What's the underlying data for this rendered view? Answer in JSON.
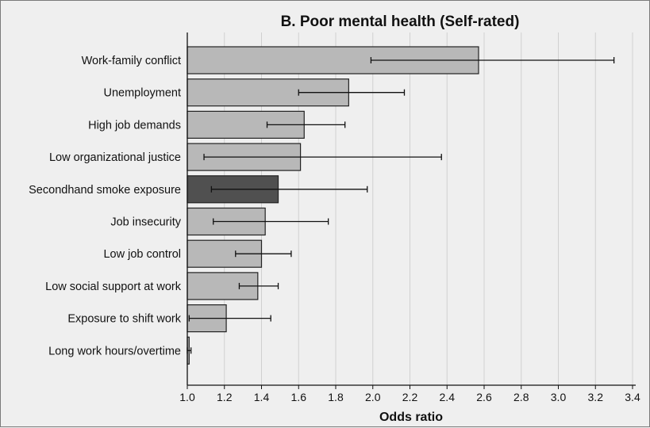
{
  "chart_data": {
    "type": "bar",
    "orientation": "horizontal",
    "title": "B. Poor mental health (Self-rated)",
    "xlabel": "Odds ratio",
    "ylabel": "",
    "xlim": [
      1.0,
      3.45
    ],
    "grid": true,
    "colors": {
      "bar": "#b8b8b8",
      "highlight": "#505050",
      "stroke": "#222222",
      "grid": "#d0d0d0"
    },
    "categories": [
      "Work-family conflict",
      "Unemployment",
      "High job demands",
      "Low organizational justice",
      "Secondhand smoke exposure",
      "Job insecurity",
      "Low job control",
      "Low social support at work",
      "Exposure to shift work",
      "Long work hours/overtime"
    ],
    "values": [
      2.57,
      1.87,
      1.63,
      1.61,
      1.49,
      1.42,
      1.4,
      1.38,
      1.21,
      1.01
    ],
    "ci_lower": [
      1.99,
      1.6,
      1.43,
      1.09,
      1.13,
      1.14,
      1.26,
      1.28,
      1.01,
      1.0
    ],
    "ci_upper": [
      3.3,
      2.17,
      1.85,
      2.37,
      1.97,
      1.76,
      1.56,
      1.49,
      1.45,
      1.02
    ],
    "highlight_index": 4,
    "xticks": [
      1.0,
      1.2,
      1.4,
      1.6,
      1.8,
      2.0,
      2.2,
      2.4,
      2.6,
      2.8,
      3.0,
      3.2,
      3.4
    ],
    "xtick_labels": [
      "1.0",
      "1.2",
      "1.4",
      "1.6",
      "1.8",
      "2.0",
      "2.2",
      "2.4",
      "2.6",
      "2.8",
      "3.0",
      "3.2",
      "3.4"
    ]
  }
}
